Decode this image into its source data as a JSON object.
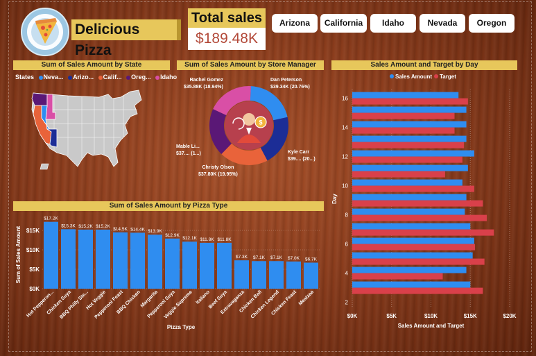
{
  "header": {
    "brand": "Delicious Pizza",
    "total_sales_label": "Total sales",
    "total_sales_value": "$189.48K"
  },
  "slicers": [
    "Arizona",
    "California",
    "Idaho",
    "Nevada",
    "Oregon"
  ],
  "colors": {
    "accent": "#e7c75b",
    "series_sales": "#2f8df0",
    "series_target": "#d9404a",
    "nevada": "#2f8df0",
    "arizona": "#1c2d96",
    "california": "#e9633a",
    "oregon": "#5a1876",
    "idaho": "#d94fa6"
  },
  "state_map": {
    "title": "Sum of Sales Amount by State",
    "legend_title": "States",
    "legend": [
      {
        "label": "Neva...",
        "color": "#2f8df0"
      },
      {
        "label": "Arizo...",
        "color": "#1c2d96"
      },
      {
        "label": "Calif...",
        "color": "#e9633a"
      },
      {
        "label": "Oreg...",
        "color": "#5a1876"
      },
      {
        "label": "Idaho",
        "color": "#d94fa6"
      }
    ]
  },
  "manager_chart": {
    "title": "Sum of Sales Amount by Store Manager",
    "segments": [
      {
        "name": "Dan Peterson",
        "value_label": "$39.34K (20.76%)",
        "value": 39.34,
        "color": "#2f8df0"
      },
      {
        "name": "Kyle Carr",
        "value_label": "$39.... (20...)",
        "value": 39.3,
        "color": "#1c2d96"
      },
      {
        "name": "Christy Olson",
        "value_label": "$37.80K (19.95%)",
        "value": 37.8,
        "color": "#e9633a"
      },
      {
        "name": "Mable Li...",
        "value_label": "$37.... (1...)",
        "value": 37.2,
        "color": "#5a1876"
      },
      {
        "name": "Rachel Gomez",
        "value_label": "$35.88K (18.94%)",
        "value": 35.88,
        "color": "#d94fa6"
      }
    ]
  },
  "chart_data": [
    {
      "type": "bar",
      "title": "Sum of Sales Amount by Pizza Type",
      "xlabel": "Pizza Type",
      "ylabel": "Sum of Sales Amount",
      "ylim": [
        0,
        17500
      ],
      "yticks": [
        "$0K",
        "$5K",
        "$10K",
        "$15K"
      ],
      "categories": [
        "Hot Pepperon...",
        "Chicken Suya",
        "BBQ Philly Ste...",
        "Hot Veggie",
        "Pepperoni Feast",
        "BBQ Chicken",
        "Margarita",
        "Pepperoni Suya",
        "Veggie Supreme",
        "Italiano",
        "Beef Suya",
        "Extravaganza",
        "Chicken Ball",
        "Chicken Legend",
        "Chicken Feast",
        "Meatzaa"
      ],
      "values": [
        17200,
        15300,
        15200,
        15200,
        14500,
        14400,
        13900,
        12900,
        12100,
        11800,
        11800,
        7300,
        7100,
        7100,
        7000,
        6700
      ],
      "data_labels": [
        "$17.2K",
        "$15.3K",
        "$15.2K",
        "$15.2K",
        "$14.5K",
        "$14.4K",
        "$13.9K",
        "$12.9K",
        "$12.1K",
        "$11.8K",
        "$11.8K",
        "$7.3K",
        "$7.1K",
        "$7.1K",
        "$7.0K",
        "$6.7K"
      ],
      "color": "#2f8df0"
    },
    {
      "type": "bar",
      "orientation": "horizontal",
      "title": "Sales Amount and Target by Day",
      "xlabel": "Sales Amount and Target",
      "ylabel": "Day",
      "xlim": [
        0,
        20000
      ],
      "xticks": [
        "$0K",
        "$5K",
        "$10K",
        "$15K",
        "$20K"
      ],
      "yticks": [
        "2",
        "4",
        "6",
        "8",
        "10",
        "12",
        "14",
        "16"
      ],
      "days": [
        16,
        15,
        14,
        13,
        12,
        11,
        10,
        9,
        8,
        7,
        6,
        5,
        4,
        3
      ],
      "series": [
        {
          "name": "Sales Amount",
          "color": "#2f8df0",
          "values": [
            13500,
            14500,
            14500,
            14500,
            15500,
            14700,
            14000,
            14500,
            14300,
            15000,
            15500,
            15300,
            14500,
            15000
          ]
        },
        {
          "name": "Target",
          "color": "#d9404a",
          "values": [
            14700,
            13000,
            13000,
            14200,
            14000,
            11800,
            15500,
            16600,
            17100,
            18000,
            15600,
            16800,
            11500,
            16600
          ]
        }
      ]
    }
  ]
}
